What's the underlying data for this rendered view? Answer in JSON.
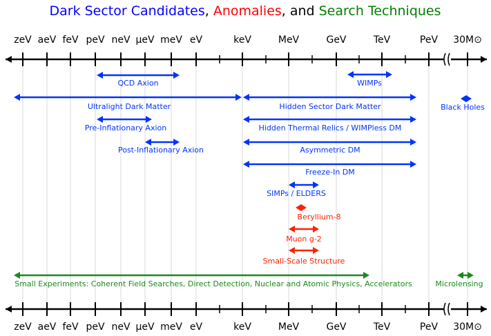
{
  "header": {
    "title": [
      {
        "text": "Dark Sector Candidates",
        "color": "#0000ff"
      },
      {
        "text": ",",
        "color": "#000000"
      },
      {
        "text": "Anomalies",
        "color": "#ff0000"
      },
      {
        "text": ", and",
        "color": "#000000"
      },
      {
        "text": "Search Techniques",
        "color": "#008000"
      }
    ]
  },
  "axis": {
    "labels": [
      "zeV",
      "aeV",
      "feV",
      "peV",
      "neV",
      "μeV",
      "meV",
      "eV",
      "keV",
      "MeV",
      "GeV",
      "TeV",
      "PeV",
      "30M⊙"
    ]
  },
  "items": [
    {
      "label": "QCD Axion",
      "color": "#0033ff"
    },
    {
      "label": "WIMPs",
      "color": "#0033ff"
    },
    {
      "label": "Ultralight Dark Matter",
      "color": "#0033ff"
    },
    {
      "label": "Hidden Sector Dark Matter",
      "color": "#0033ff"
    },
    {
      "label": "Black Holes",
      "color": "#0033ff"
    },
    {
      "label": "Pre-Inflationary Axion",
      "color": "#0033ff"
    },
    {
      "label": "Hidden Thermal Relics / WIMPless DM",
      "color": "#0033ff"
    },
    {
      "label": "Post-Inflationary Axion",
      "color": "#0033ff"
    },
    {
      "label": "Asymmetric DM",
      "color": "#0033ff"
    },
    {
      "label": "Freeze-In DM",
      "color": "#0033ff"
    },
    {
      "label": "SIMPs / ELDERS",
      "color": "#0033ff"
    },
    {
      "label": "Beryllium-8",
      "color": "#ff2200"
    },
    {
      "label": "Muon g-2",
      "color": "#ff2200"
    },
    {
      "label": "Small-Scale Structure",
      "color": "#ff2200"
    },
    {
      "label": "Small Experiments: Coherent Field Searches, Direct Detection, Nuclear and Atomic Physics, Accelerators",
      "color": "#1a8a1a"
    },
    {
      "label": "Microlensing",
      "color": "#1a8a1a"
    }
  ]
}
